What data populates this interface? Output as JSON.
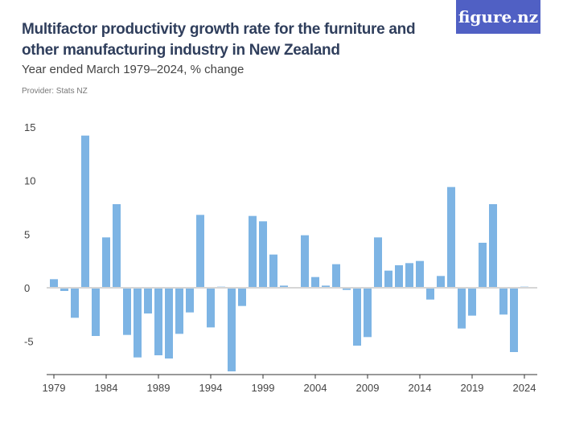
{
  "title": "Multifactor productivity growth rate for the furniture and other manufacturing industry in New Zealand",
  "subtitle": "Year ended March 1979–2024, % change",
  "provider": "Provider: Stats NZ",
  "logo": "figure.nz",
  "chart_data": {
    "type": "bar",
    "title": "Multifactor productivity growth rate for the furniture and other manufacturing industry in New Zealand",
    "xlabel": "",
    "ylabel": "",
    "ylim": [
      -8,
      15
    ],
    "yticks": [
      15,
      10,
      5,
      0,
      -5
    ],
    "ytick_labels": [
      "15",
      "10",
      "5",
      "0",
      "-5"
    ],
    "xtick_labels": [
      "1979",
      "1984",
      "1989",
      "1994",
      "1999",
      "2004",
      "2009",
      "2014",
      "2019",
      "2024"
    ],
    "bar_color": "#7db4e4",
    "grid": false,
    "categories": [
      1979,
      1980,
      1981,
      1982,
      1983,
      1984,
      1985,
      1986,
      1987,
      1988,
      1989,
      1990,
      1991,
      1992,
      1993,
      1994,
      1995,
      1996,
      1997,
      1998,
      1999,
      2000,
      2001,
      2002,
      2003,
      2004,
      2005,
      2006,
      2007,
      2008,
      2009,
      2010,
      2011,
      2012,
      2013,
      2014,
      2015,
      2016,
      2017,
      2018,
      2019,
      2020,
      2021,
      2022,
      2023,
      2024
    ],
    "values": [
      0.8,
      -0.3,
      -2.8,
      14.2,
      -4.5,
      4.7,
      7.8,
      -4.4,
      -6.5,
      -2.4,
      -6.3,
      -6.6,
      -4.3,
      -2.3,
      6.8,
      -3.7,
      0.1,
      -7.8,
      -1.7,
      6.7,
      6.2,
      3.1,
      0.2,
      0,
      4.9,
      1.0,
      0.2,
      2.2,
      -0.2,
      -5.4,
      -4.6,
      4.7,
      1.6,
      2.1,
      2.3,
      2.5,
      -1.1,
      1.1,
      9.4,
      -3.8,
      -2.6,
      4.2,
      7.8,
      -2.5,
      -6.0,
      0.1
    ]
  }
}
